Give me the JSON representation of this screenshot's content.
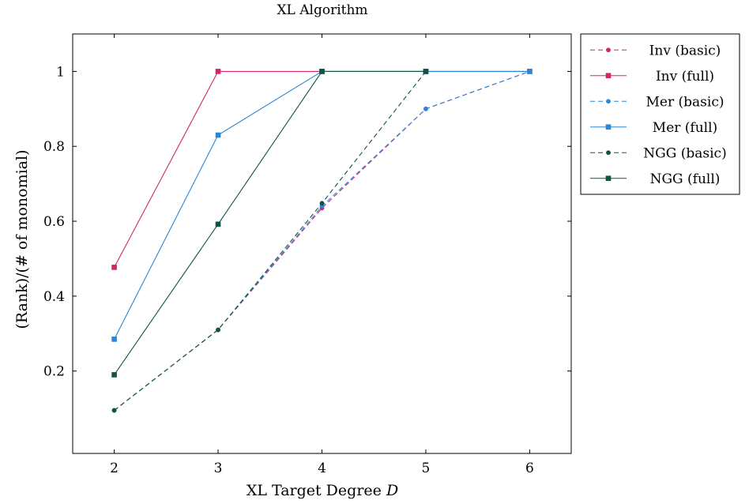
{
  "chart_data": {
    "type": "line",
    "title": "XL Algorithm",
    "xlabel": "XL Target Degree ",
    "xlabel_var": "D",
    "ylabel": "(Rank)/(# of monomial)",
    "xlim": [
      1.6,
      6.4
    ],
    "ylim": [
      -0.02,
      1.1
    ],
    "x_ticks": [
      2,
      3,
      4,
      5,
      6
    ],
    "y_ticks": [
      0.2,
      0.4,
      0.6,
      0.8,
      1
    ],
    "grid": false,
    "legend_position": "outside-top-right",
    "series": [
      {
        "name": "Inv (basic)",
        "color": "#d4246a",
        "dash": true,
        "marker": "circle",
        "x": [
          2,
          3,
          4,
          5,
          6
        ],
        "y": [
          0.095,
          0.31,
          0.635,
          0.9,
          1.0
        ]
      },
      {
        "name": "Inv (full)",
        "color": "#d4246a",
        "dash": false,
        "marker": "square",
        "x": [
          2,
          3,
          4,
          5,
          6
        ],
        "y": [
          0.477,
          1.0,
          1.0,
          1.0,
          1.0
        ]
      },
      {
        "name": "Mer (basic)",
        "color": "#2b86d9",
        "dash": true,
        "marker": "circle",
        "x": [
          2,
          3,
          4,
          5,
          6
        ],
        "y": [
          0.095,
          0.31,
          0.64,
          0.9,
          1.0
        ]
      },
      {
        "name": "Mer (full)",
        "color": "#2b86d9",
        "dash": false,
        "marker": "square",
        "x": [
          2,
          3,
          4,
          5,
          6
        ],
        "y": [
          0.285,
          0.83,
          1.0,
          1.0,
          1.0
        ]
      },
      {
        "name": "NGG (basic)",
        "color": "#0f5346",
        "dash": true,
        "marker": "circle",
        "x": [
          2,
          3,
          4,
          5
        ],
        "y": [
          0.095,
          0.31,
          0.648,
          1.0
        ]
      },
      {
        "name": "NGG (full)",
        "color": "#0f5346",
        "dash": false,
        "marker": "square",
        "x": [
          2,
          3,
          4,
          5
        ],
        "y": [
          0.19,
          0.592,
          1.0,
          1.0
        ]
      }
    ]
  }
}
